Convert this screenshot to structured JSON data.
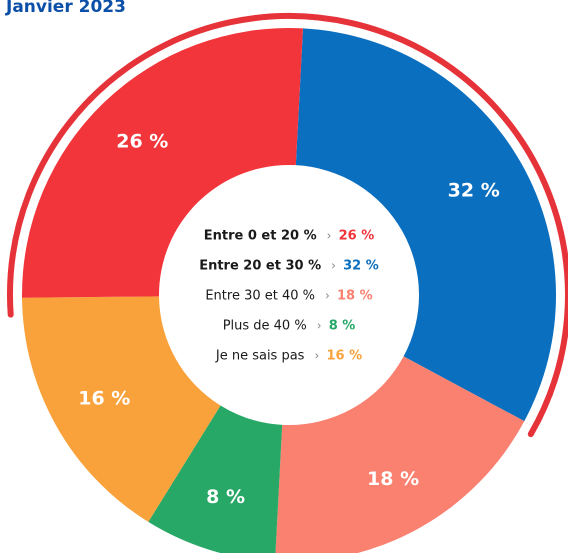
{
  "chart_data": {
    "type": "donut",
    "title": "Janvier 2023",
    "categories": [
      "Entre 0 et 20 %",
      "Entre 20 et 30 %",
      "Entre 30 et 40 %",
      "Plus de 40 %",
      "Je ne sais pas"
    ],
    "values": [
      26,
      32,
      18,
      8,
      16
    ],
    "value_labels": [
      "26 %",
      "32 %",
      "18 %",
      "8 %",
      "16 %"
    ],
    "colors": [
      "#f2353b",
      "#0b6fc0",
      "#fa8070",
      "#27a866",
      "#f9a23c"
    ]
  }
}
